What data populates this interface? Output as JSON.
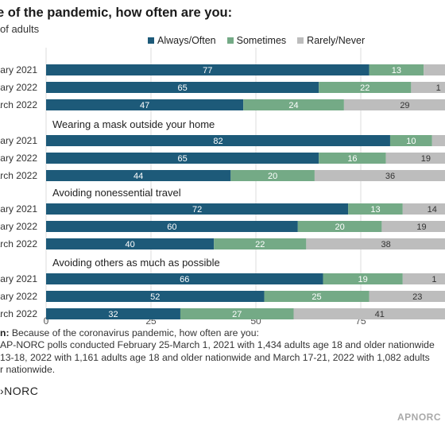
{
  "title": "e of the pandemic, how often are you:",
  "subtitle": "of adults",
  "colors": {
    "always": "#1d5a79",
    "sometimes": "#74aa86",
    "rarely": "#bdbdbd",
    "grid": "#dddddd"
  },
  "notes": {
    "question_label": "n:",
    "question_text": " Because of the coronavirus pandemic, how often are you:",
    "line1": "AP-NORC polls conducted February 25-March 1, 2021 with 1,434 adults age 18 and older nationwide",
    "line2": "13-18, 2022 with 1,161 adults age 18 and older nationwide and March 17-21, 2022 with 1,082 adults",
    "line3": "r nationwide."
  },
  "logo": "NORC",
  "credit": "APNORC",
  "chart_data": {
    "type": "bar",
    "stacked": true,
    "orientation": "horizontal",
    "legend": [
      "Always/Often",
      "Sometimes",
      "Rarely/Never"
    ],
    "legend_position": "top",
    "xlim": [
      0,
      100
    ],
    "xticks": [
      "0",
      "25",
      "50",
      "75"
    ],
    "grid": true,
    "groups": [
      {
        "label": "",
        "rows": [
          {
            "label": "uary 2021",
            "values": [
              77,
              13,
              null
            ],
            "value_labels": [
              "77",
              "13",
              ""
            ]
          },
          {
            "label": "rary 2022",
            "values": [
              65,
              22,
              null
            ],
            "value_labels": [
              "65",
              "22",
              "1"
            ]
          },
          {
            "label": "arch 2022",
            "values": [
              47,
              24,
              29
            ],
            "value_labels": [
              "47",
              "24",
              "29"
            ]
          }
        ]
      },
      {
        "label": "Wearing a mask outside your home",
        "rows": [
          {
            "label": "uary 2021",
            "values": [
              82,
              10,
              null
            ],
            "value_labels": [
              "82",
              "10",
              ""
            ]
          },
          {
            "label": "rary 2022",
            "values": [
              65,
              16,
              19
            ],
            "value_labels": [
              "65",
              "16",
              "19"
            ]
          },
          {
            "label": "arch 2022",
            "values": [
              44,
              20,
              36
            ],
            "value_labels": [
              "44",
              "20",
              "36"
            ]
          }
        ]
      },
      {
        "label": "Avoiding nonessential travel",
        "rows": [
          {
            "label": "uary 2021",
            "values": [
              72,
              13,
              14
            ],
            "value_labels": [
              "72",
              "13",
              "14"
            ]
          },
          {
            "label": "rary 2022",
            "values": [
              60,
              20,
              19
            ],
            "value_labels": [
              "60",
              "20",
              "19"
            ]
          },
          {
            "label": "arch 2022",
            "values": [
              40,
              22,
              38
            ],
            "value_labels": [
              "40",
              "22",
              "38"
            ]
          }
        ]
      },
      {
        "label": "Avoiding others as much as possible",
        "rows": [
          {
            "label": "uary 2021",
            "values": [
              66,
              19,
              null
            ],
            "value_labels": [
              "66",
              "19",
              "1"
            ]
          },
          {
            "label": "rary 2022",
            "values": [
              52,
              25,
              23
            ],
            "value_labels": [
              "52",
              "25",
              "23"
            ]
          },
          {
            "label": "arch 2022",
            "values": [
              32,
              27,
              41
            ],
            "value_labels": [
              "32",
              "27",
              "41"
            ]
          }
        ]
      }
    ]
  }
}
